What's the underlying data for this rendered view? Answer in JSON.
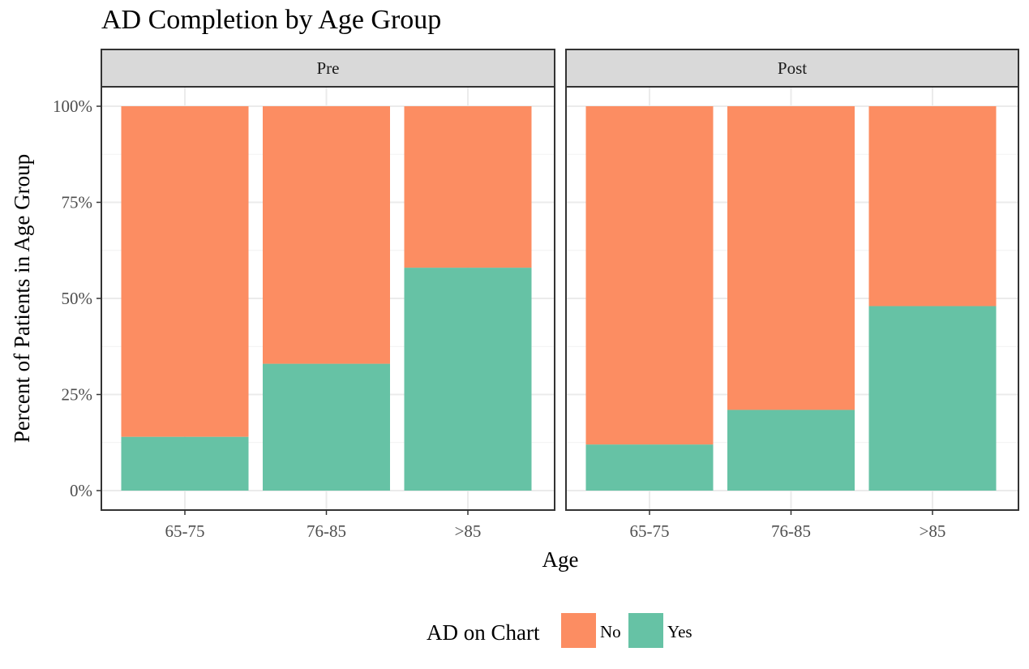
{
  "chart_data": {
    "type": "bar",
    "stacked": true,
    "title": "AD Completion by Age Group",
    "xlabel": "Age",
    "ylabel": "Percent of Patients in Age Group",
    "ylim": [
      0,
      1
    ],
    "y_ticks": [
      "0%",
      "25%",
      "50%",
      "75%",
      "100%"
    ],
    "y_tick_values": [
      0,
      0.25,
      0.5,
      0.75,
      1.0
    ],
    "grid": true,
    "categories": [
      "65-75",
      "76-85",
      ">85"
    ],
    "facets": [
      {
        "label": "Pre",
        "series": [
          {
            "name": "No",
            "values": [
              0.86,
              0.67,
              0.42
            ]
          },
          {
            "name": "Yes",
            "values": [
              0.14,
              0.33,
              0.58
            ]
          }
        ]
      },
      {
        "label": "Post",
        "series": [
          {
            "name": "No",
            "values": [
              0.88,
              0.79,
              0.52
            ]
          },
          {
            "name": "Yes",
            "values": [
              0.12,
              0.21,
              0.48
            ]
          }
        ]
      }
    ],
    "legend": {
      "title": "AD on Chart",
      "position": "bottom",
      "items": [
        {
          "label": "No",
          "color": "#fc8d62"
        },
        {
          "label": "Yes",
          "color": "#66c2a5"
        }
      ]
    },
    "colors": {
      "No": "#fc8d62",
      "Yes": "#66c2a5"
    }
  }
}
